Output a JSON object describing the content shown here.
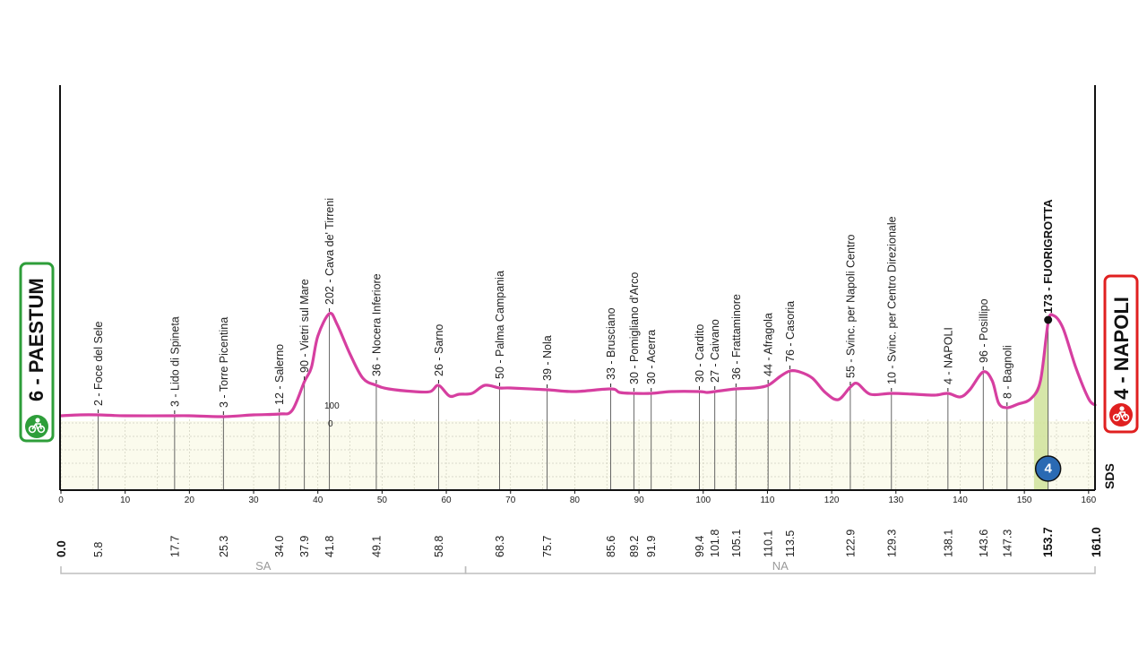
{
  "start": {
    "label": "6 - PAESTUM",
    "km": "0.0",
    "color": "#2e9e3a"
  },
  "finish": {
    "label": "4 - NAPOLI",
    "km": "161.0",
    "color": "#e02020"
  },
  "distance_ticks": [
    "0",
    "10",
    "20",
    "30",
    "40",
    "50",
    "60",
    "70",
    "80",
    "90",
    "100",
    "110",
    "120",
    "130",
    "140",
    "150",
    "160"
  ],
  "elevation_markers": {
    "upper": "100",
    "lower": "0"
  },
  "sprint_badge": "4",
  "brand_mark": "SDS",
  "regions": [
    {
      "name": "SA",
      "from_km": 0,
      "to_km": 63
    },
    {
      "name": "NA",
      "from_km": 63,
      "to_km": 161
    }
  ],
  "colors": {
    "profile": "#d63fa0",
    "grid": "#cfcfbe",
    "fill": "#fbfbed",
    "climb": "#cfe29a",
    "region_line": "#bdbdbd"
  },
  "chart_data": {
    "type": "line",
    "xlabel": "",
    "ylabel": "",
    "xlim": [
      0,
      161
    ],
    "ylim": [
      0,
      260
    ],
    "profile": {
      "x": [
        0,
        3,
        5.8,
        10,
        17.7,
        20,
        25.3,
        30,
        34.0,
        36,
        37.9,
        39,
        40,
        41.8,
        43,
        45,
        47,
        49.1,
        51,
        55,
        57.5,
        58.8,
        60.5,
        62,
        64,
        66,
        68.3,
        70,
        75.7,
        80,
        85.6,
        87,
        89.2,
        91.9,
        95,
        99.4,
        100.6,
        101.8,
        105.1,
        108,
        110.1,
        112,
        113.5,
        115,
        117,
        119,
        121,
        122.9,
        124,
        126,
        129.3,
        133,
        136,
        138.1,
        140,
        141.5,
        143.6,
        145,
        146,
        147.3,
        149,
        151,
        152.5,
        153.7,
        154.5,
        156,
        158,
        160,
        161
      ],
      "y": [
        6,
        7,
        7,
        6,
        6,
        6,
        5,
        7,
        8,
        12,
        44,
        60,
        95,
        120,
        108,
        75,
        48,
        40,
        36,
        33,
        33,
        40,
        28,
        30,
        31,
        40,
        37,
        37,
        35,
        33,
        36,
        32,
        31,
        31,
        33,
        33,
        32,
        33,
        36,
        37,
        40,
        50,
        56,
        55,
        48,
        32,
        24,
        38,
        42,
        30,
        31,
        30,
        29,
        31,
        27,
        35,
        55,
        45,
        20,
        15,
        19,
        25,
        45,
        110,
        118,
        104,
        60,
        25,
        18
      ]
    },
    "waypoints": [
      {
        "km": "5.8",
        "alt_km": 5.8,
        "label": "2 - Foce del Sele"
      },
      {
        "km": "17.7",
        "alt_km": 17.7,
        "label": "3 - Lido di Spineta"
      },
      {
        "km": "25.3",
        "alt_km": 25.3,
        "label": "3 - Torre Picentina"
      },
      {
        "km": "34.0",
        "alt_km": 34.0,
        "label": "12 - Salerno"
      },
      {
        "km": "37.9",
        "alt_km": 37.9,
        "label": "90 - Vietri sul Mare"
      },
      {
        "km": "41.8",
        "alt_km": 41.8,
        "label": "202 - Cava de' Tirreni"
      },
      {
        "km": "49.1",
        "alt_km": 49.1,
        "label": "36 - Nocera Inferiore"
      },
      {
        "km": "58.8",
        "alt_km": 58.8,
        "label": "26 - Sarno"
      },
      {
        "km": "68.3",
        "alt_km": 68.3,
        "label": "50 - Palma Campania"
      },
      {
        "km": "75.7",
        "alt_km": 75.7,
        "label": "39 - Nola"
      },
      {
        "km": "85.6",
        "alt_km": 85.6,
        "label": "33 - Brusciano"
      },
      {
        "km": "89.2",
        "alt_km": 89.2,
        "label": "30 - Pomigliano d'Arco"
      },
      {
        "km": "91.9",
        "alt_km": 91.9,
        "label": "30 - Acerra"
      },
      {
        "km": "99.4",
        "alt_km": 99.4,
        "label": "30 - Cardito"
      },
      {
        "km": "101.8",
        "alt_km": 101.8,
        "label": "27 - Caivano"
      },
      {
        "km": "105.1",
        "alt_km": 105.1,
        "label": "36 - Frattaminore"
      },
      {
        "km": "110.1",
        "alt_km": 110.1,
        "label": "44 - Afragola"
      },
      {
        "km": "113.5",
        "alt_km": 113.5,
        "label": "76 - Casoria"
      },
      {
        "km": "122.9",
        "alt_km": 122.9,
        "label": "55 - Svinc. per Napoli Centro"
      },
      {
        "km": "129.3",
        "alt_km": 129.3,
        "label": "10 - Svinc. per Centro Direzionale"
      },
      {
        "km": "138.1",
        "alt_km": 138.1,
        "label": "4 - NAPOLI"
      },
      {
        "km": "143.6",
        "alt_km": 143.6,
        "label": "96 - Posillipo"
      },
      {
        "km": "147.3",
        "alt_km": 147.3,
        "label": "8 - Bagnoli"
      },
      {
        "km": "153.7",
        "alt_km": 153.7,
        "label": "173 - FUORIGROTTA",
        "bold": true
      }
    ]
  }
}
